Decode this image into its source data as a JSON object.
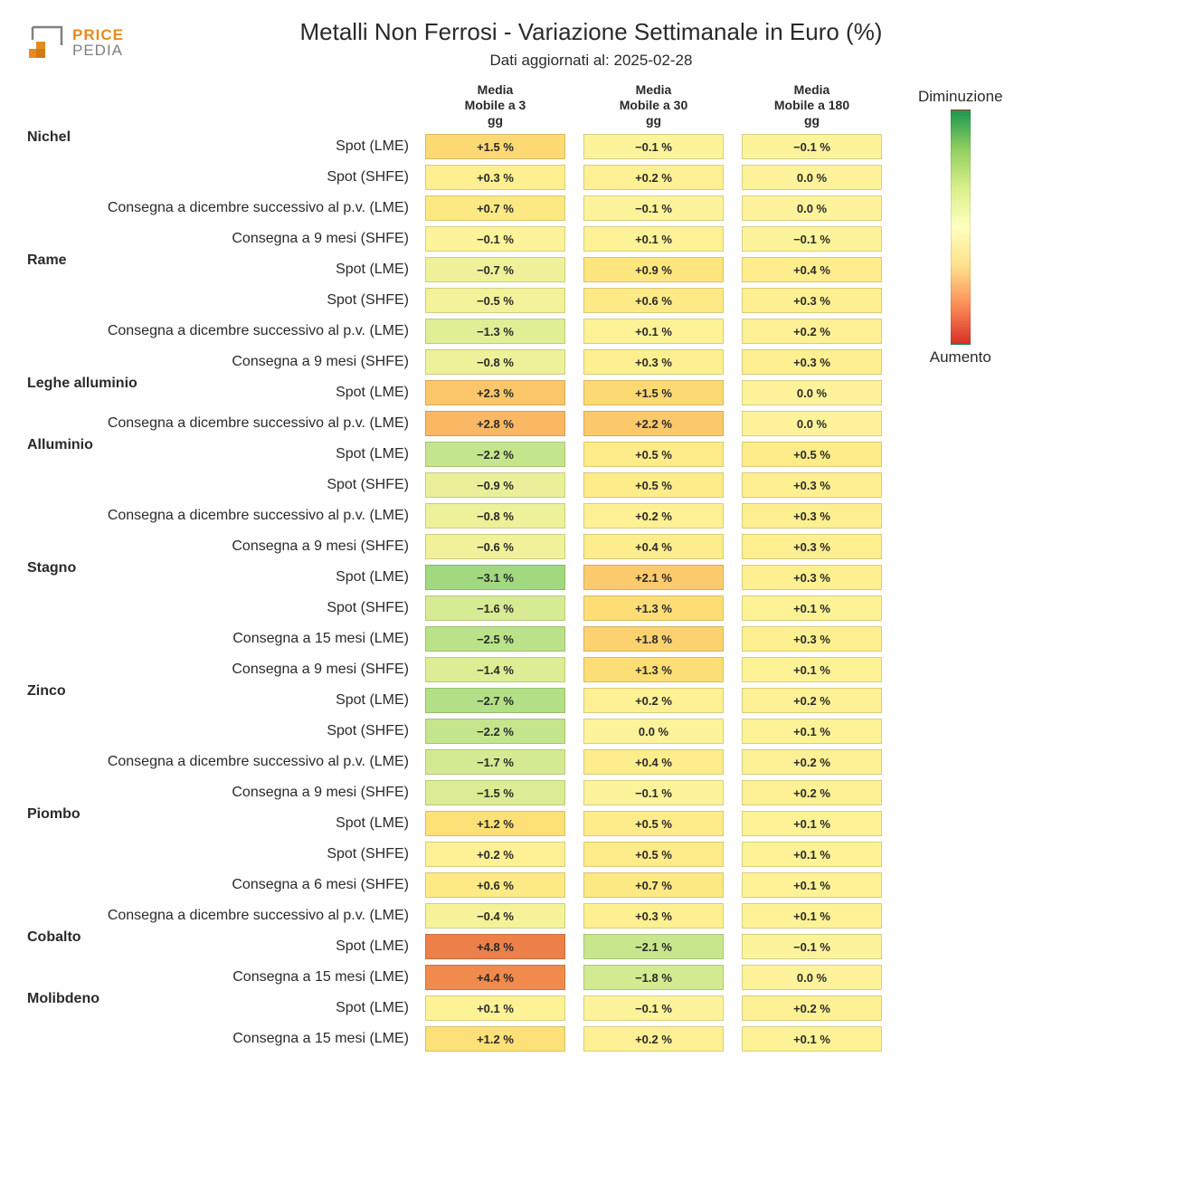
{
  "logo": {
    "text_top": "PRICE",
    "text_bottom": "PEDIA",
    "color_top": "#e88a1f",
    "color_bottom": "#808080"
  },
  "title": "Metalli Non Ferrosi - Variazione Settimanale in Euro (%)",
  "subtitle": "Dati aggiornati al: 2025-02-28",
  "columns": [
    "Media\nMobile a 3\ngg",
    "Media\nMobile a 30\ngg",
    "Media\nMobile a 180\ngg"
  ],
  "legend": {
    "top": "Diminuzione",
    "bottom": "Aumento",
    "gradient_stops": [
      "#1a9850",
      "#91cf60",
      "#d9ef8b",
      "#ffffbf",
      "#fee08b",
      "#fc8d59",
      "#d73027"
    ]
  },
  "color_scale": {
    "min": -4.0,
    "max": 5.0,
    "stops": [
      {
        "v": -4.0,
        "c": "#6fc06f"
      },
      {
        "v": -3.0,
        "c": "#a8db82"
      },
      {
        "v": -2.0,
        "c": "#cce88e"
      },
      {
        "v": -1.0,
        "c": "#e8f09a"
      },
      {
        "v": 0.0,
        "c": "#fef39a"
      },
      {
        "v": 1.0,
        "c": "#fde47a"
      },
      {
        "v": 2.0,
        "c": "#fcce6e"
      },
      {
        "v": 3.0,
        "c": "#f9b261"
      },
      {
        "v": 4.0,
        "c": "#f39552"
      },
      {
        "v": 5.0,
        "c": "#ec7a45"
      }
    ]
  },
  "rows": [
    {
      "group": "Nichel",
      "label": "Spot (LME)",
      "v": [
        1.5,
        -0.1,
        -0.1
      ]
    },
    {
      "group": "",
      "label": "Spot (SHFE)",
      "v": [
        0.3,
        0.2,
        0.0
      ]
    },
    {
      "group": "",
      "label": "Consegna a dicembre successivo al p.v. (LME)",
      "v": [
        0.7,
        -0.1,
        0.0
      ]
    },
    {
      "group": "",
      "label": "Consegna a 9 mesi (SHFE)",
      "v": [
        -0.1,
        0.1,
        -0.1
      ]
    },
    {
      "group": "Rame",
      "label": "Spot (LME)",
      "v": [
        -0.7,
        0.9,
        0.4
      ]
    },
    {
      "group": "",
      "label": "Spot (SHFE)",
      "v": [
        -0.5,
        0.6,
        0.3
      ]
    },
    {
      "group": "",
      "label": "Consegna a dicembre successivo al p.v. (LME)",
      "v": [
        -1.3,
        0.1,
        0.2
      ]
    },
    {
      "group": "",
      "label": "Consegna a 9 mesi (SHFE)",
      "v": [
        -0.8,
        0.3,
        0.3
      ]
    },
    {
      "group": "Leghe alluminio",
      "label": "Spot (LME)",
      "v": [
        2.3,
        1.5,
        0.0
      ]
    },
    {
      "group": "",
      "label": "Consegna a dicembre successivo al p.v. (LME)",
      "v": [
        2.8,
        2.2,
        0.0
      ]
    },
    {
      "group": "Alluminio",
      "label": "Spot (LME)",
      "v": [
        -2.2,
        0.5,
        0.5
      ]
    },
    {
      "group": "",
      "label": "Spot (SHFE)",
      "v": [
        -0.9,
        0.5,
        0.3
      ]
    },
    {
      "group": "",
      "label": "Consegna a dicembre successivo al p.v. (LME)",
      "v": [
        -0.8,
        0.2,
        0.3
      ]
    },
    {
      "group": "",
      "label": "Consegna a 9 mesi (SHFE)",
      "v": [
        -0.6,
        0.4,
        0.3
      ]
    },
    {
      "group": "Stagno",
      "label": "Spot (LME)",
      "v": [
        -3.1,
        2.1,
        0.3
      ]
    },
    {
      "group": "",
      "label": "Spot (SHFE)",
      "v": [
        -1.6,
        1.3,
        0.1
      ]
    },
    {
      "group": "",
      "label": "Consegna a 15 mesi (LME)",
      "v": [
        -2.5,
        1.8,
        0.3
      ]
    },
    {
      "group": "",
      "label": "Consegna a 9 mesi (SHFE)",
      "v": [
        -1.4,
        1.3,
        0.1
      ]
    },
    {
      "group": "Zinco",
      "label": "Spot (LME)",
      "v": [
        -2.7,
        0.2,
        0.2
      ]
    },
    {
      "group": "",
      "label": "Spot (SHFE)",
      "v": [
        -2.2,
        0.0,
        0.1
      ]
    },
    {
      "group": "",
      "label": "Consegna a dicembre successivo al p.v. (LME)",
      "v": [
        -1.7,
        0.4,
        0.2
      ]
    },
    {
      "group": "",
      "label": "Consegna a 9 mesi (SHFE)",
      "v": [
        -1.5,
        -0.1,
        0.2
      ]
    },
    {
      "group": "Piombo",
      "label": "Spot (LME)",
      "v": [
        1.2,
        0.5,
        0.1
      ]
    },
    {
      "group": "",
      "label": "Spot (SHFE)",
      "v": [
        0.2,
        0.5,
        0.1
      ]
    },
    {
      "group": "",
      "label": "Consegna a 6 mesi (SHFE)",
      "v": [
        0.6,
        0.7,
        0.1
      ]
    },
    {
      "group": "",
      "label": "Consegna a dicembre successivo al p.v. (LME)",
      "v": [
        -0.4,
        0.3,
        0.1
      ]
    },
    {
      "group": "Cobalto",
      "label": "Spot (LME)",
      "v": [
        4.8,
        -2.1,
        -0.1
      ]
    },
    {
      "group": "",
      "label": "Consegna a 15 mesi (LME)",
      "v": [
        4.4,
        -1.8,
        0.0
      ]
    },
    {
      "group": "Molibdeno",
      "label": "Spot (LME)",
      "v": [
        0.1,
        -0.1,
        0.2
      ]
    },
    {
      "group": "",
      "label": "Consegna a 15 mesi (LME)",
      "v": [
        1.2,
        0.2,
        0.1
      ]
    }
  ]
}
